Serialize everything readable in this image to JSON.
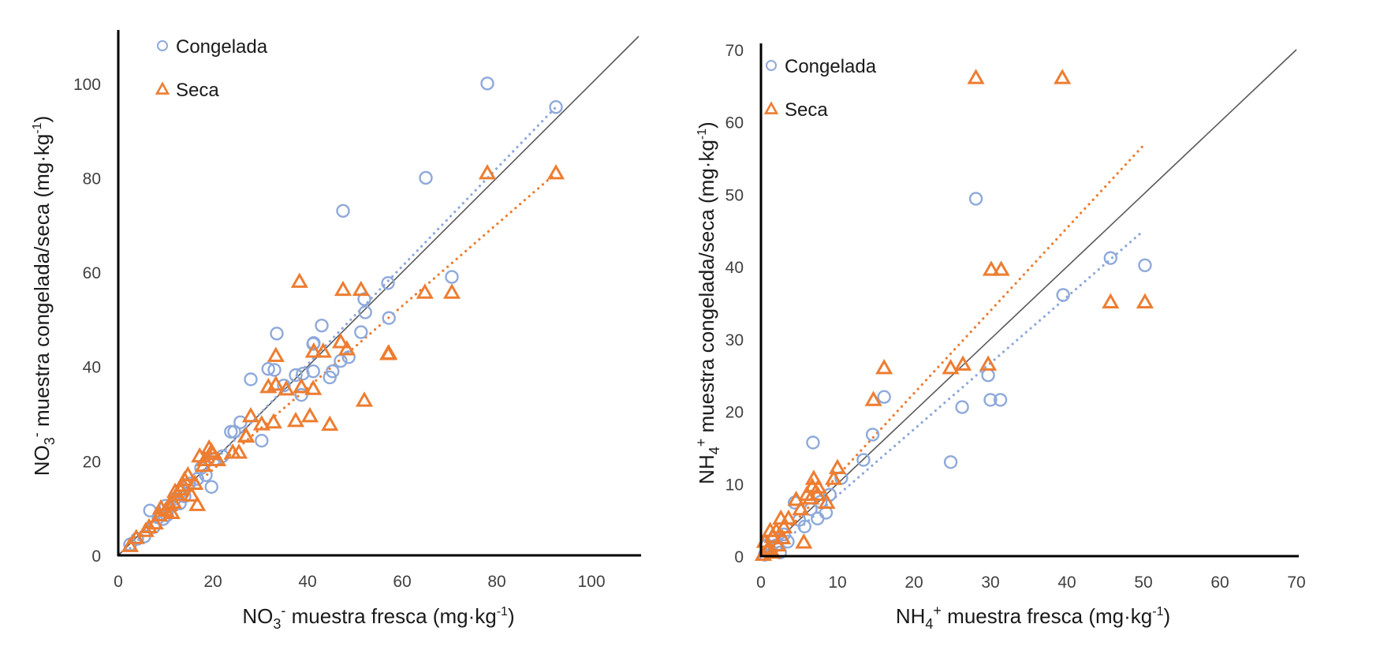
{
  "chart_data": [
    {
      "type": "scatter",
      "id": "nitrate",
      "title": "",
      "xlabel": {
        "pre": "NO",
        "sub": "3",
        "sup": "-",
        "post": " muestra fresca (mg·kg",
        "unit_sup": "-1",
        "end": ")"
      },
      "ylabel": {
        "pre": "NO",
        "sub": "3",
        "sup": "-",
        "post": " muestra congelada/seca (mg·kg",
        "unit_sup": "-1",
        "end": ")"
      },
      "xlim": [
        0,
        110
      ],
      "ylim": [
        0,
        110
      ],
      "xticks": [
        0,
        20,
        40,
        60,
        80,
        100
      ],
      "yticks": [
        0,
        20,
        40,
        60,
        80,
        100
      ],
      "grid": false,
      "legend": {
        "position": "top-left",
        "entries": [
          "Congelada",
          "Seca"
        ]
      },
      "reference_line": {
        "type": "1:1",
        "color": "#595959"
      },
      "series": [
        {
          "name": "Congelada",
          "marker": "circle",
          "color": "#8EA9DB",
          "trendline": {
            "x": [
              2.5,
              92.5
            ],
            "y": [
              1.5,
              95
            ],
            "style": "dotted"
          },
          "points": [
            [
              78,
              100
            ],
            [
              92.5,
              95
            ],
            [
              65,
              80
            ],
            [
              47.5,
              73
            ],
            [
              70.5,
              59
            ],
            [
              57,
              57.7
            ],
            [
              52,
              54.3
            ],
            [
              52.2,
              51.5
            ],
            [
              57.2,
              50.3
            ],
            [
              43,
              48.7
            ],
            [
              33.5,
              47
            ],
            [
              51.3,
              47.3
            ],
            [
              41.3,
              45
            ],
            [
              41.2,
              44.8
            ],
            [
              48.7,
              42
            ],
            [
              47,
              41.2
            ],
            [
              45.3,
              39
            ],
            [
              44.7,
              37.7
            ],
            [
              41.2,
              39
            ],
            [
              38.7,
              34
            ],
            [
              37.5,
              38.2
            ],
            [
              33,
              39.3
            ],
            [
              31.7,
              39.5
            ],
            [
              28,
              37.3
            ],
            [
              30.3,
              24.3
            ],
            [
              25.8,
              28.2
            ],
            [
              24.5,
              26.2
            ],
            [
              23.8,
              26.2
            ],
            [
              20.3,
              20.3
            ],
            [
              19.7,
              14.5
            ],
            [
              17.5,
              18.5
            ],
            [
              16.7,
              16.2
            ],
            [
              15,
              15.2
            ],
            [
              13.3,
              13.5
            ],
            [
              13,
              11
            ],
            [
              10.3,
              8.5
            ],
            [
              9.5,
              7.7
            ],
            [
              7.5,
              6
            ],
            [
              6.7,
              9.5
            ],
            [
              5.5,
              4
            ],
            [
              2.5,
              2.3
            ],
            [
              11.5,
              10.5
            ],
            [
              8.5,
              8
            ],
            [
              14,
              12.5
            ],
            [
              18.5,
              17
            ],
            [
              22,
              21
            ],
            [
              4,
              3.5
            ],
            [
              12,
              12
            ],
            [
              10,
              10.5
            ],
            [
              35,
              36
            ],
            [
              39,
              38.5
            ]
          ]
        },
        {
          "name": "Seca",
          "marker": "triangle",
          "color": "#ED7D31",
          "trendline": {
            "x": [
              2.5,
              92.5
            ],
            "y": [
              3,
              81
            ],
            "style": "dotted"
          },
          "points": [
            [
              78,
              81
            ],
            [
              92.5,
              81
            ],
            [
              38.3,
              58
            ],
            [
              47.5,
              56.3
            ],
            [
              51.3,
              56.3
            ],
            [
              64.8,
              55.7
            ],
            [
              70.5,
              55.7
            ],
            [
              33.3,
              42.3
            ],
            [
              41.3,
              43.2
            ],
            [
              43.3,
              43.2
            ],
            [
              47,
              45.2
            ],
            [
              48.3,
              43.7
            ],
            [
              57,
              42.7
            ],
            [
              57.2,
              42.8
            ],
            [
              31.7,
              35.7
            ],
            [
              33.3,
              36.2
            ],
            [
              35.5,
              35.2
            ],
            [
              38.7,
              35.7
            ],
            [
              41.2,
              35.3
            ],
            [
              52,
              32.8
            ],
            [
              40.5,
              29.5
            ],
            [
              37.5,
              28.5
            ],
            [
              44.7,
              27.7
            ],
            [
              32.8,
              28.2
            ],
            [
              28,
              29.5
            ],
            [
              30.3,
              27.8
            ],
            [
              27,
              25.3
            ],
            [
              25.5,
              21.8
            ],
            [
              24.2,
              21.8
            ],
            [
              27,
              25.2
            ],
            [
              21,
              20.2
            ],
            [
              19.7,
              22
            ],
            [
              19.2,
              22.7
            ],
            [
              18.3,
              20.2
            ],
            [
              17.2,
              21
            ],
            [
              16.2,
              15.2
            ],
            [
              16.7,
              10.7
            ],
            [
              15.5,
              12.7
            ],
            [
              14.7,
              17
            ],
            [
              13.8,
              14.8
            ],
            [
              13,
              14
            ],
            [
              12.5,
              12.8
            ],
            [
              11.7,
              11.2
            ],
            [
              11.3,
              9
            ],
            [
              10.8,
              10.7
            ],
            [
              10,
              9.5
            ],
            [
              8.7,
              8.5
            ],
            [
              7.8,
              6.8
            ],
            [
              5.8,
              5.2
            ],
            [
              3.8,
              3.7
            ],
            [
              2.5,
              2
            ],
            [
              9,
              10
            ],
            [
              12,
              13.5
            ],
            [
              14,
              16
            ],
            [
              6.5,
              6
            ],
            [
              18,
              19
            ],
            [
              20,
              21.5
            ]
          ]
        }
      ]
    },
    {
      "type": "scatter",
      "id": "ammonium",
      "title": "",
      "xlabel": {
        "pre": "NH",
        "sub": "4",
        "sup": "+",
        "post": " muestra fresca (mg·kg",
        "unit_sup": "-1",
        "end": ")"
      },
      "ylabel": {
        "pre": "NH",
        "sub": "4",
        "sup": "+",
        "post": " muestra congelada/seca (mg·kg",
        "unit_sup": "-1",
        "end": ")"
      },
      "xlim": [
        0,
        70
      ],
      "ylim": [
        0,
        70
      ],
      "xticks": [
        0,
        10,
        20,
        30,
        40,
        50,
        60,
        70
      ],
      "yticks": [
        0,
        10,
        20,
        30,
        40,
        50,
        60,
        70
      ],
      "grid": false,
      "legend": {
        "position": "top-left",
        "entries": [
          "Congelada",
          "Seca"
        ]
      },
      "reference_line": {
        "type": "1:1",
        "color": "#595959"
      },
      "series": [
        {
          "name": "Congelada",
          "marker": "circle",
          "color": "#8EA9DB",
          "trendline": {
            "x": [
              0.3,
              49.7
            ],
            "y": [
              -0.5,
              44.7
            ],
            "style": "dotted"
          },
          "points": [
            [
              28.1,
              49.4
            ],
            [
              45.7,
              41.2
            ],
            [
              50.2,
              40.2
            ],
            [
              39.5,
              36.1
            ],
            [
              29.7,
              25
            ],
            [
              30,
              21.6
            ],
            [
              31.3,
              21.6
            ],
            [
              26.3,
              20.6
            ],
            [
              16.1,
              22
            ],
            [
              14.6,
              16.8
            ],
            [
              24.8,
              13
            ],
            [
              13.4,
              13.3
            ],
            [
              6.8,
              15.7
            ],
            [
              10.5,
              10.8
            ],
            [
              8.5,
              6
            ],
            [
              7.4,
              5.2
            ],
            [
              5.7,
              4.1
            ],
            [
              4.4,
              7.4
            ],
            [
              3,
              3
            ],
            [
              2,
              1.5
            ],
            [
              1.2,
              0.8
            ],
            [
              0.5,
              0.2
            ],
            [
              1.8,
              2.5
            ],
            [
              6.5,
              6.5
            ],
            [
              9,
              8.5
            ],
            [
              2.5,
              0.5
            ],
            [
              0.8,
              1.5
            ],
            [
              5,
              5
            ],
            [
              7.8,
              7.5
            ],
            [
              3.5,
              2
            ]
          ]
        },
        {
          "name": "Seca",
          "marker": "triangle",
          "color": "#ED7D31",
          "trendline": {
            "x": [
              0.3,
              50.2
            ],
            "y": [
              0,
              57
            ],
            "style": "dotted"
          },
          "points": [
            [
              28.1,
              66.1
            ],
            [
              39.4,
              66.1
            ],
            [
              30.1,
              39.6
            ],
            [
              31.4,
              39.6
            ],
            [
              45.7,
              35.1
            ],
            [
              50.2,
              35.1
            ],
            [
              16.1,
              26
            ],
            [
              24.8,
              26
            ],
            [
              26.4,
              26.5
            ],
            [
              29.7,
              26.5
            ],
            [
              14.7,
              21.6
            ],
            [
              10,
              12.2
            ],
            [
              9.5,
              10.7
            ],
            [
              6.9,
              10.7
            ],
            [
              6.7,
              9.6
            ],
            [
              7.4,
              8.5
            ],
            [
              8.6,
              7.4
            ],
            [
              4.6,
              7.8
            ],
            [
              3.6,
              5.2
            ],
            [
              2.6,
              5.2
            ],
            [
              5.6,
              1.9
            ],
            [
              1.5,
              2.7
            ],
            [
              0.5,
              2
            ],
            [
              1,
              1
            ],
            [
              2,
              3.5
            ],
            [
              3,
              4
            ],
            [
              1.5,
              0.5
            ],
            [
              0.3,
              0.2
            ],
            [
              2.2,
              1.5
            ],
            [
              6,
              8.5
            ],
            [
              7.5,
              9.5
            ],
            [
              1.2,
              3.5
            ],
            [
              0.8,
              0.8
            ],
            [
              2.8,
              2.5
            ],
            [
              5.2,
              6.5
            ],
            [
              6.5,
              8
            ]
          ]
        }
      ]
    }
  ]
}
